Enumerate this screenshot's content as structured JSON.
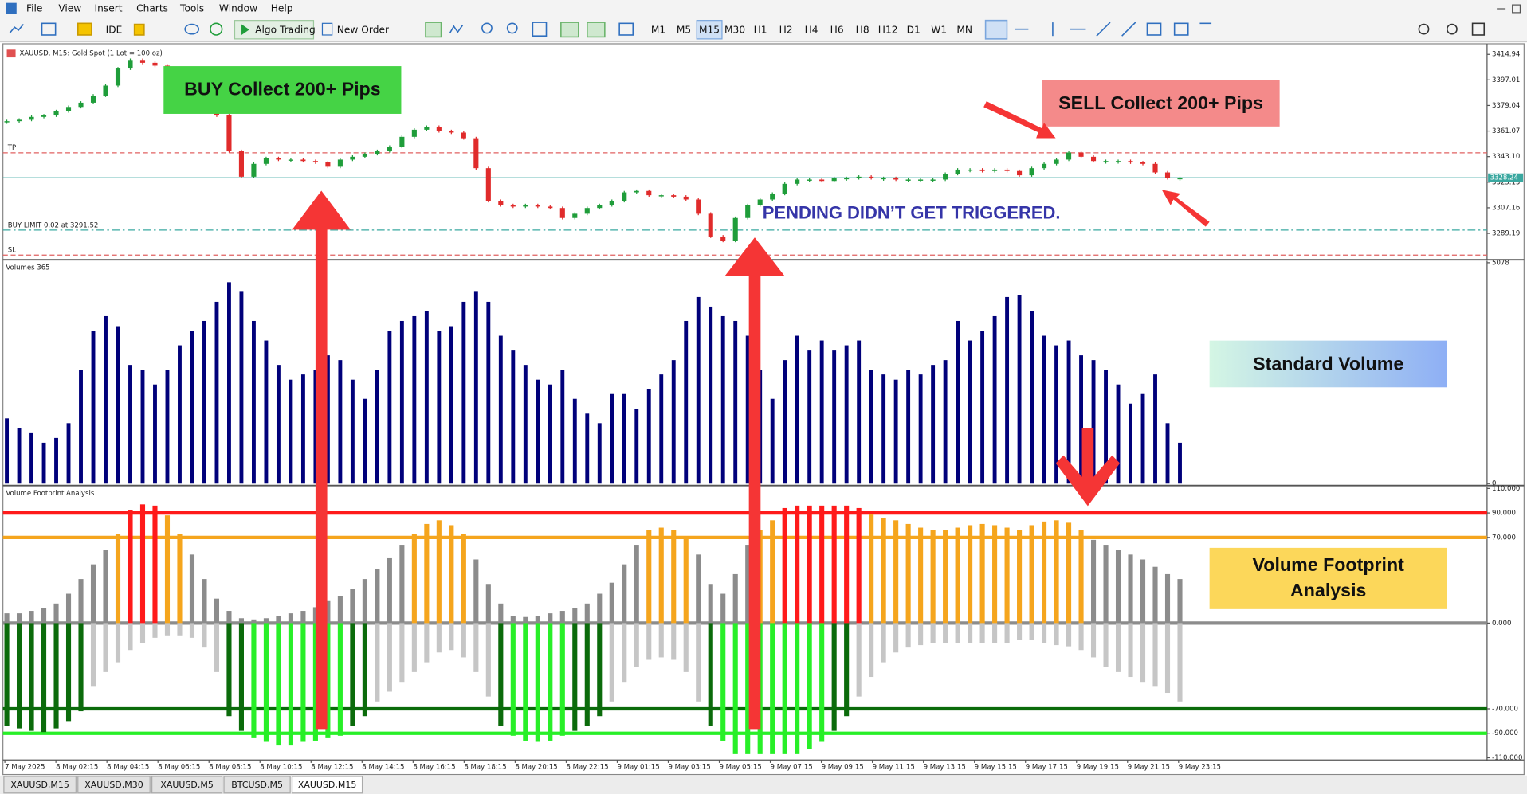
{
  "menu": [
    "File",
    "View",
    "Insert",
    "Charts",
    "Tools",
    "Window",
    "Help"
  ],
  "toolbar": {
    "ide": "IDE",
    "algo": "Algo Trading",
    "order": "New Order"
  },
  "timeframes": [
    "M1",
    "M5",
    "M15",
    "M30",
    "H1",
    "H2",
    "H4",
    "H6",
    "H8",
    "H12",
    "D1",
    "W1",
    "MN"
  ],
  "active_timeframe": 2,
  "annotations": {
    "buy": "BUY Collect 200+ Pips",
    "sell": "SELL Collect 200+ Pips",
    "pending": "PENDING DIDN’T GET TRIGGERED.",
    "standard_volume": "Standard Volume",
    "footprint": [
      "Volume Footprint",
      "Analysis"
    ]
  },
  "chart_data": [
    {
      "type": "candlestick",
      "title": "XAUUSD, M15:  Gold Spot (1 Lot = 100 oz)",
      "up_color": "#1f9d3a",
      "down_color": "#e02b2b",
      "values": [
        3368,
        3369,
        3371,
        3372,
        3375,
        3378,
        3381,
        3386,
        3393,
        3405,
        3411,
        3409,
        3407,
        3400,
        3392,
        3387,
        3380,
        3372,
        3347,
        3329,
        3338,
        3342,
        3341,
        3341,
        3340,
        3339,
        3336,
        3341,
        3343,
        3345,
        3347,
        3350,
        3357,
        3362,
        3364,
        3361,
        3360,
        3356,
        3335,
        3312,
        3309,
        3308,
        3309,
        3308,
        3307,
        3300,
        3303,
        3307,
        3309,
        3312,
        3318,
        3319,
        3316,
        3316,
        3315,
        3313,
        3303,
        3287,
        3284,
        3300,
        3309,
        3313,
        3317,
        3324,
        3327,
        3327,
        3326,
        3328,
        3328,
        3329,
        3328,
        3328,
        3327,
        3327,
        3327,
        3327,
        3331,
        3334,
        3334,
        3333,
        3334,
        3333,
        3330,
        3335,
        3338,
        3341,
        3346,
        3343,
        3340,
        3340,
        3340,
        3339,
        3338,
        3332,
        3328,
        3328
      ],
      "ylim": [
        3272,
        3421
      ],
      "yticks": [
        3414.94,
        3397.01,
        3379.04,
        3361.07,
        {
          "value": 3343.1,
          "label": "3343.10"
        },
        3325.13,
        3307.16,
        3289.19
      ],
      "levels": [
        {
          "label": "TP",
          "value": 3345.8,
          "color": "#e06060",
          "style": "dash"
        },
        {
          "label": "BUY LIMIT 0.02 at 3291.52",
          "value": 3291.52,
          "color": "#3aa8a0",
          "style": "dashdot"
        },
        {
          "label": "SL",
          "value": 3274,
          "color": "#e06060",
          "style": "dash"
        }
      ],
      "current_price": 3328.24,
      "current_color": "#3aa8a0"
    },
    {
      "type": "bar",
      "title": "Volumes 365",
      "color": "#00007a",
      "values": [
        1500,
        1275,
        1160,
        940,
        1050,
        1390,
        2620,
        3510,
        3850,
        3620,
        2730,
        2620,
        2280,
        2620,
        3180,
        3510,
        3740,
        4180,
        4630,
        4410,
        3740,
        3290,
        2730,
        2390,
        2510,
        2620,
        2950,
        2840,
        2390,
        1950,
        2620,
        3510,
        3740,
        3850,
        3960,
        3510,
        3620,
        4180,
        4410,
        4180,
        3400,
        3060,
        2730,
        2390,
        2280,
        2620,
        1950,
        1610,
        1390,
        2060,
        2060,
        1720,
        2170,
        2510,
        2840,
        3740,
        4290,
        4070,
        3850,
        3740,
        3400,
        2620,
        1950,
        2840,
        3400,
        3060,
        3290,
        3060,
        3180,
        3290,
        2620,
        2510,
        2390,
        2620,
        2510,
        2730,
        2840,
        3740,
        3290,
        3510,
        3850,
        4290,
        4340,
        3960,
        3400,
        3180,
        3290,
        2950,
        2840,
        2620,
        2280,
        1840,
        2060,
        2510,
        1390,
        940
      ],
      "ylim": [
        0,
        5078
      ],
      "yticks": [
        0,
        5078
      ]
    },
    {
      "type": "bar",
      "title": "Volume Footprint Analysis",
      "series": [
        {
          "values": [
            8,
            8,
            10,
            12,
            16,
            24,
            36,
            48,
            60,
            73,
            92,
            97,
            96,
            88,
            73,
            56,
            36,
            20,
            10,
            4,
            3,
            4,
            6,
            8,
            10,
            13,
            18,
            22,
            28,
            36,
            44,
            53,
            64,
            73,
            81,
            84,
            80,
            73,
            52,
            32,
            16,
            6,
            5,
            6,
            8,
            10,
            12,
            16,
            24,
            33,
            48,
            64,
            76,
            78,
            76,
            70,
            56,
            32,
            24,
            40,
            64,
            76,
            84,
            94,
            96,
            96,
            96,
            96,
            96,
            94,
            89,
            86,
            84,
            81,
            78,
            76,
            76,
            78,
            80,
            81,
            80,
            78,
            76,
            80,
            83,
            84,
            82,
            76,
            68,
            64,
            60,
            56,
            52,
            46,
            40,
            36
          ]
        },
        {
          "values": [
            -84,
            -86,
            -88,
            -89,
            -86,
            -80,
            -72,
            -52,
            -40,
            -32,
            -22,
            -16,
            -12,
            -10,
            -10,
            -12,
            -20,
            -40,
            -76,
            -88,
            -94,
            -97,
            -100,
            -100,
            -97,
            -96,
            -94,
            -92,
            -84,
            -76,
            -64,
            -56,
            -48,
            -40,
            -32,
            -24,
            -22,
            -28,
            -40,
            -60,
            -84,
            -92,
            -96,
            -97,
            -96,
            -92,
            -88,
            -84,
            -76,
            -64,
            -48,
            -36,
            -30,
            -28,
            -30,
            -40,
            -64,
            -84,
            -96,
            -107,
            -107,
            -107,
            -107,
            -107,
            -107,
            -103,
            -97,
            -88,
            -76,
            -60,
            -44,
            -32,
            -24,
            -20,
            -18,
            -16,
            -16,
            -16,
            -16,
            -16,
            -16,
            -16,
            -14,
            -14,
            -16,
            -18,
            -19,
            -22,
            -28,
            -36,
            -40,
            -44,
            -48,
            -52,
            -57,
            -64
          ]
        }
      ],
      "levels": [
        {
          "value": 90,
          "color": "#ff1a1a"
        },
        {
          "value": 70,
          "color": "#f5a51d"
        },
        {
          "value": 0,
          "color": "#8c8c8c"
        },
        {
          "value": -70,
          "color": "#0b6b0b"
        },
        {
          "value": -90,
          "color": "#28ef28"
        }
      ],
      "neutral_sell_color": "#c6c6c6",
      "ylim": [
        -111,
        110
      ],
      "yticks": [
        {
          "value": 110,
          "label": "110.000"
        },
        {
          "value": 90,
          "label": "90.000"
        },
        {
          "value": 70,
          "label": "70.000"
        },
        {
          "value": 0,
          "label": "0.000"
        },
        {
          "value": -70,
          "label": "-70.000"
        },
        {
          "value": -90,
          "label": "-90.000"
        },
        {
          "value": -110,
          "label": "-110.000"
        }
      ]
    }
  ],
  "time_axis": [
    "7 May 2025",
    "8 May 02:15",
    "8 May 04:15",
    "8 May 06:15",
    "8 May 08:15",
    "8 May 10:15",
    "8 May 12:15",
    "8 May 14:15",
    "8 May 16:15",
    "8 May 18:15",
    "8 May 20:15",
    "8 May 22:15",
    "9 May 01:15",
    "9 May 03:15",
    "9 May 05:15",
    "9 May 07:15",
    "9 May 09:15",
    "9 May 11:15",
    "9 May 13:15",
    "9 May 15:15",
    "9 May 17:15",
    "9 May 19:15",
    "9 May 21:15",
    "9 May 23:15"
  ],
  "tabs": [
    "XAUUSD,M15",
    "XAUUSD,M30",
    "XAUUSD,M5",
    "BTCUSD,M5",
    "XAUUSD,M15"
  ],
  "active_tab": 4
}
